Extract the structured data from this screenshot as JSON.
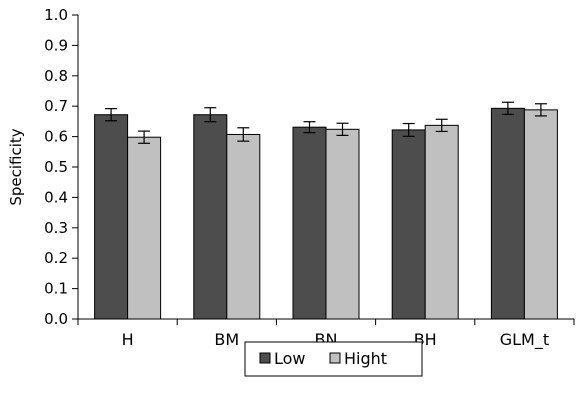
{
  "chart_data": {
    "type": "bar",
    "ylabel": "Specificity",
    "xlabel": "",
    "ylim": [
      0,
      1.0
    ],
    "y_ticks": [
      "0.0",
      "0.1",
      "0.2",
      "0.3",
      "0.4",
      "0.5",
      "0.6",
      "0.7",
      "0.8",
      "0.9",
      "1.0"
    ],
    "y_tick_values": [
      0,
      0.1,
      0.2,
      0.3,
      0.4,
      0.5,
      0.6,
      0.7,
      0.8,
      0.9,
      1.0
    ],
    "categories": [
      "H",
      "BM",
      "BN",
      "BH",
      "GLM_t"
    ],
    "series": [
      {
        "name": "Low",
        "color": "#4d4d4d",
        "values": [
          0.672,
          0.672,
          0.631,
          0.622,
          0.693
        ],
        "error": [
          0.02,
          0.023,
          0.018,
          0.021,
          0.02
        ]
      },
      {
        "name": "Hight",
        "color": "#c0c0c0",
        "values": [
          0.598,
          0.607,
          0.624,
          0.637,
          0.688
        ],
        "error": [
          0.02,
          0.022,
          0.02,
          0.02,
          0.02
        ]
      }
    ],
    "grid": false,
    "legend_position": "bottom-center"
  }
}
